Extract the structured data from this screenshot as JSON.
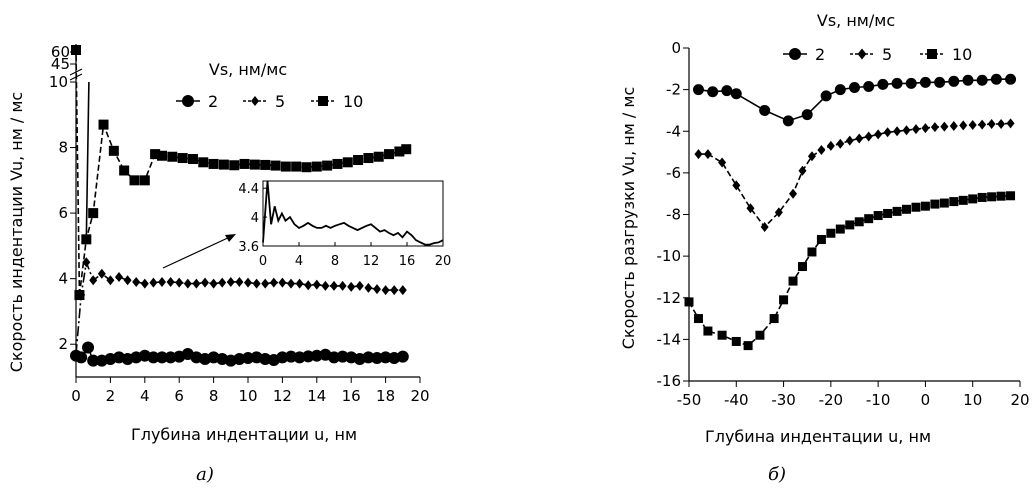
{
  "chart_data": [
    {
      "type": "line",
      "caption": "а)",
      "xlabel": "Глубина индентации u, нм",
      "ylabel": "Скорость индентации Vu, нм / мс",
      "legend_title": "Vs, нм/мс",
      "legend_position": "top-right",
      "xlim": [
        0,
        20
      ],
      "ylim": [
        1,
        10
      ],
      "y_break_ticks": [
        "45",
        "60"
      ],
      "x_ticks": [
        "0",
        "2",
        "4",
        "6",
        "8",
        "10",
        "12",
        "14",
        "16",
        "18",
        "20"
      ],
      "y_ticks": [
        "2",
        "4",
        "6",
        "8",
        "10"
      ],
      "series": [
        {
          "name": "2",
          "marker": "circle",
          "line": "solid",
          "x": [
            0,
            0.3,
            0.7,
            1.0,
            1.5,
            2.0,
            2.5,
            3.0,
            3.5,
            4.0,
            4.5,
            5.0,
            5.5,
            6.0,
            6.5,
            7.0,
            7.5,
            8.0,
            8.5,
            9.0,
            9.5,
            10.0,
            10.5,
            11.0,
            11.5,
            12.0,
            12.5,
            13.0,
            13.5,
            14.0,
            14.5,
            15.0,
            15.5,
            16.0,
            16.5,
            17.0,
            17.5,
            18.0,
            18.5,
            19.0
          ],
          "y": [
            1.65,
            1.6,
            1.9,
            1.5,
            1.5,
            1.55,
            1.6,
            1.55,
            1.6,
            1.65,
            1.6,
            1.6,
            1.6,
            1.62,
            1.7,
            1.6,
            1.55,
            1.6,
            1.55,
            1.5,
            1.55,
            1.58,
            1.6,
            1.55,
            1.52,
            1.6,
            1.62,
            1.6,
            1.63,
            1.65,
            1.68,
            1.6,
            1.62,
            1.6,
            1.55,
            1.6,
            1.58,
            1.6,
            1.58,
            1.62
          ]
        },
        {
          "name": "5",
          "marker": "diamond",
          "line": "dash-dot",
          "x": [
            0,
            0.3,
            0.6,
            1.0,
            1.5,
            2.0,
            2.5,
            3.0,
            3.5,
            4.0,
            4.5,
            5.0,
            5.5,
            6.0,
            6.5,
            7.0,
            7.5,
            8.0,
            8.5,
            9.0,
            9.5,
            10.0,
            10.5,
            11.0,
            11.5,
            12.0,
            12.5,
            13.0,
            13.5,
            14.0,
            14.5,
            15.0,
            15.5,
            16.0,
            16.5,
            17.0,
            17.5,
            18.0,
            18.5,
            19.0
          ],
          "y": [
            1.7,
            3.5,
            4.5,
            3.95,
            4.15,
            3.95,
            4.05,
            3.95,
            3.9,
            3.85,
            3.88,
            3.9,
            3.9,
            3.88,
            3.85,
            3.85,
            3.88,
            3.85,
            3.88,
            3.9,
            3.9,
            3.88,
            3.85,
            3.85,
            3.88,
            3.88,
            3.85,
            3.85,
            3.8,
            3.82,
            3.78,
            3.78,
            3.78,
            3.75,
            3.78,
            3.72,
            3.68,
            3.65,
            3.65,
            3.65
          ]
        },
        {
          "name": "10",
          "marker": "square",
          "line": "dashed",
          "x": [
            0.2,
            0.6,
            1.0,
            1.6,
            2.2,
            2.8,
            3.4,
            4.0,
            4.6,
            5.0,
            5.6,
            6.2,
            6.8,
            7.4,
            8.0,
            8.6,
            9.2,
            9.8,
            10.4,
            11.0,
            11.6,
            12.2,
            12.8,
            13.4,
            14.0,
            14.6,
            15.2,
            15.8,
            16.4,
            17.0,
            17.6,
            18.2,
            18.8,
            19.2
          ],
          "y": [
            3.5,
            5.2,
            6.0,
            8.7,
            7.9,
            7.3,
            7.0,
            7.0,
            7.8,
            7.75,
            7.72,
            7.68,
            7.65,
            7.55,
            7.5,
            7.48,
            7.46,
            7.5,
            7.48,
            7.47,
            7.45,
            7.42,
            7.42,
            7.4,
            7.42,
            7.45,
            7.5,
            7.55,
            7.62,
            7.68,
            7.72,
            7.8,
            7.88,
            7.95
          ]
        }
      ],
      "inset": {
        "type": "line",
        "xlim": [
          0,
          20
        ],
        "ylim": [
          3.6,
          4.5
        ],
        "x_ticks": [
          "0",
          "4",
          "8",
          "12",
          "16",
          "20"
        ],
        "y_ticks": [
          "3.6",
          "4",
          "4.4"
        ],
        "x": [
          0,
          0.5,
          0.9,
          1.3,
          1.7,
          2.1,
          2.5,
          3.0,
          3.5,
          4.0,
          4.5,
          5.0,
          5.5,
          6.0,
          6.5,
          7.0,
          7.5,
          8.0,
          8.5,
          9.0,
          9.5,
          10.0,
          10.5,
          11.0,
          11.5,
          12.0,
          12.5,
          13.0,
          13.5,
          14.0,
          14.5,
          15.0,
          15.5,
          16.0,
          16.5,
          17.0,
          17.5,
          18.0,
          18.5,
          19.0,
          19.5,
          20.0
        ],
        "y": [
          3.65,
          4.5,
          3.9,
          4.15,
          3.95,
          4.05,
          3.95,
          4.0,
          3.9,
          3.85,
          3.88,
          3.92,
          3.88,
          3.85,
          3.85,
          3.88,
          3.85,
          3.88,
          3.9,
          3.92,
          3.88,
          3.85,
          3.82,
          3.85,
          3.88,
          3.9,
          3.85,
          3.8,
          3.82,
          3.78,
          3.75,
          3.78,
          3.72,
          3.8,
          3.75,
          3.68,
          3.65,
          3.62,
          3.62,
          3.64,
          3.65,
          3.68
        ]
      }
    },
    {
      "type": "line",
      "caption": "б)",
      "xlabel": "Глубина индентации u, нм",
      "ylabel": "Скорость разгрузки Vu, нм / мс",
      "legend_title": "Vs, нм/мс",
      "legend_position": "top-right",
      "xlim": [
        -50,
        20
      ],
      "ylim": [
        -16,
        0
      ],
      "x_ticks": [
        "-50",
        "-40",
        "-30",
        "-20",
        "-10",
        "0",
        "10",
        "20"
      ],
      "y_ticks": [
        "0",
        "-2",
        "-4",
        "-6",
        "-8",
        "-10",
        "-12",
        "-14",
        "-16"
      ],
      "series": [
        {
          "name": "2",
          "marker": "circle",
          "line": "solid",
          "x": [
            -48,
            -45,
            -42,
            -40,
            -34,
            -29,
            -25,
            -21,
            -18,
            -15,
            -12,
            -9,
            -6,
            -3,
            0,
            3,
            6,
            9,
            12,
            15,
            18
          ],
          "y": [
            -2.0,
            -2.1,
            -2.05,
            -2.2,
            -3.0,
            -3.5,
            -3.2,
            -2.3,
            -2.0,
            -1.9,
            -1.85,
            -1.75,
            -1.7,
            -1.7,
            -1.65,
            -1.65,
            -1.6,
            -1.55,
            -1.55,
            -1.5,
            -1.5
          ]
        },
        {
          "name": "5",
          "marker": "diamond",
          "line": "dashed",
          "x": [
            -48,
            -46,
            -43,
            -40,
            -37,
            -34,
            -31,
            -28,
            -26,
            -24,
            -22,
            -20,
            -18,
            -16,
            -14,
            -12,
            -10,
            -8,
            -6,
            -4,
            -2,
            0,
            2,
            4,
            6,
            8,
            10,
            12,
            14,
            16,
            18
          ],
          "y": [
            -5.1,
            -5.1,
            -5.5,
            -6.6,
            -7.7,
            -8.6,
            -7.9,
            -7.0,
            -5.9,
            -5.2,
            -4.9,
            -4.7,
            -4.6,
            -4.45,
            -4.35,
            -4.25,
            -4.15,
            -4.05,
            -4.0,
            -3.95,
            -3.9,
            -3.85,
            -3.8,
            -3.78,
            -3.75,
            -3.72,
            -3.7,
            -3.68,
            -3.65,
            -3.65,
            -3.62
          ]
        },
        {
          "name": "10",
          "marker": "square",
          "line": "dashed",
          "x": [
            -50,
            -48,
            -46,
            -43,
            -40,
            -37.5,
            -35,
            -32,
            -30,
            -28,
            -26,
            -24,
            -22,
            -20,
            -18,
            -16,
            -14,
            -12,
            -10,
            -8,
            -6,
            -4,
            -2,
            0,
            2,
            4,
            6,
            8,
            10,
            12,
            14,
            16,
            18
          ],
          "y": [
            -12.2,
            -13.0,
            -13.6,
            -13.8,
            -14.1,
            -14.3,
            -13.8,
            -13.0,
            -12.1,
            -11.2,
            -10.5,
            -9.8,
            -9.2,
            -8.9,
            -8.7,
            -8.5,
            -8.35,
            -8.2,
            -8.05,
            -7.95,
            -7.85,
            -7.75,
            -7.65,
            -7.6,
            -7.5,
            -7.45,
            -7.38,
            -7.32,
            -7.25,
            -7.18,
            -7.15,
            -7.12,
            -7.1
          ]
        }
      ]
    }
  ]
}
